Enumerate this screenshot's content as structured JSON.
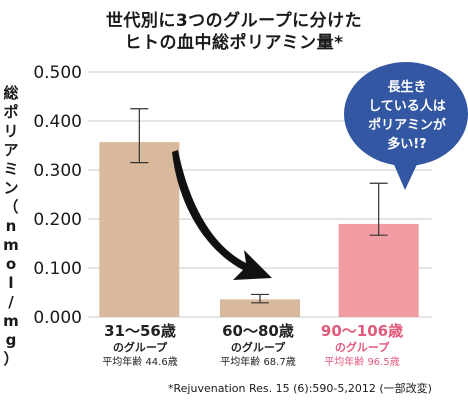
{
  "chart_data": {
    "type": "bar",
    "title": [
      "世代別に3つのグループに分けた",
      "ヒトの血中総ポリアミン量*"
    ],
    "ylabel": "総ポリアミン（nmol/mg）",
    "ylim": [
      0,
      0.5
    ],
    "yticks": [
      "0.000",
      "0.100",
      "0.200",
      "0.300",
      "0.400",
      "0.500"
    ],
    "categories": [
      "31〜56歳",
      "60〜80歳",
      "90〜106歳"
    ],
    "category_group": "のグループ",
    "mean_ages": [
      "平均年齢 44.6歳",
      "平均年齢 68.7歳",
      "平均年齢 96.5歳"
    ],
    "values": [
      0.357,
      0.036,
      0.19
    ],
    "error_low": [
      0.315,
      0.029,
      0.167
    ],
    "error_high": [
      0.425,
      0.046,
      0.273
    ],
    "bar_colors": [
      "#d8b99c",
      "#d8b99c",
      "#f29da4"
    ],
    "highlight_color": "#e2597a",
    "bubble_color": "#3457a3",
    "bubble_text": [
      "長生き",
      "している人は",
      "ポリアミンが",
      "多い!?"
    ],
    "footnote": "*Rejuvenation Res. 15 (6):590-5,2012 (一部改変)"
  }
}
